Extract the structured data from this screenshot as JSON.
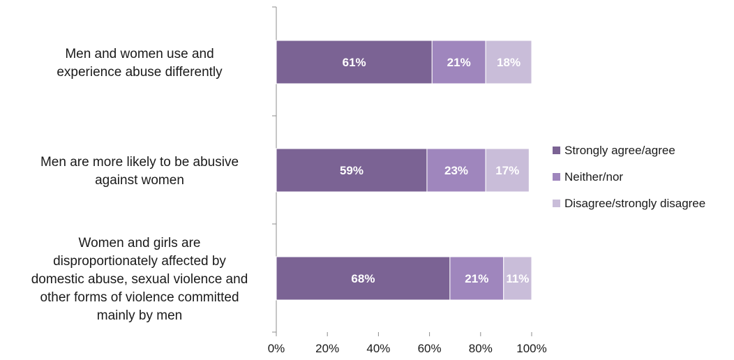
{
  "chart_data": {
    "type": "bar",
    "orientation": "horizontal",
    "stacked": true,
    "percent_stacked": true,
    "categories": [
      [
        "Men and women use and",
        "experience abuse differently"
      ],
      [
        "Men are more likely to be abusive",
        "against women"
      ],
      [
        "Women and girls are",
        "disproportionately affected by",
        "domestic abuse, sexual violence and",
        "other forms of violence committed",
        "mainly by men"
      ]
    ],
    "series": [
      {
        "name": "Strongly agree/agree",
        "values": [
          61,
          59,
          68
        ],
        "labels": [
          "61%",
          "59%",
          "68%"
        ],
        "color": "#7b6394"
      },
      {
        "name": "Neither/nor",
        "values": [
          21,
          23,
          21
        ],
        "labels": [
          "21%",
          "23%",
          "21%"
        ],
        "color": "#9f86bd"
      },
      {
        "name": "Disagree/strongly disagree",
        "values": [
          18,
          17,
          11
        ],
        "labels": [
          "18%",
          "17%",
          "11%"
        ],
        "color": "#c9bdd9"
      }
    ],
    "xlim": [
      0,
      100
    ],
    "x_ticks": [
      "0%",
      "20%",
      "40%",
      "60%",
      "80%",
      "100%"
    ],
    "grid": false,
    "legend_position": "right"
  }
}
